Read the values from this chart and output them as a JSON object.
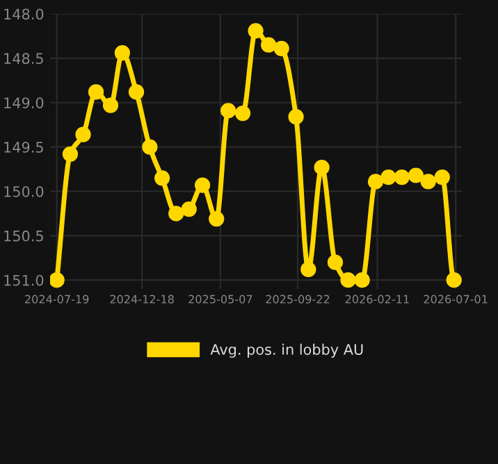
{
  "chart_data": {
    "type": "line",
    "x": [
      "2024-07-19",
      "2024-08-12",
      "2024-09-04",
      "2024-09-27",
      "2024-10-23",
      "2024-11-13",
      "2024-12-08",
      "2025-01-01",
      "2025-01-23",
      "2025-02-17",
      "2025-03-12",
      "2025-04-05",
      "2025-04-30",
      "2025-05-21",
      "2025-06-16",
      "2025-07-09",
      "2025-08-01",
      "2025-08-24",
      "2025-09-19",
      "2025-10-11",
      "2025-11-04",
      "2025-11-28",
      "2025-12-21",
      "2026-01-15",
      "2026-02-08",
      "2026-03-03",
      "2026-03-27",
      "2026-04-21",
      "2026-05-13",
      "2026-06-07",
      "2026-06-28"
    ],
    "series": [
      {
        "name": "Avg. pos. in lobby AU",
        "color": "#ffd700",
        "values": [
          151.0,
          149.58,
          149.36,
          148.88,
          149.03,
          148.44,
          148.88,
          149.5,
          149.85,
          150.25,
          150.2,
          149.93,
          150.31,
          149.09,
          149.12,
          148.19,
          148.35,
          148.39,
          149.16,
          150.88,
          149.73,
          150.8,
          151.0,
          151.0,
          149.89,
          149.84,
          149.84,
          149.82,
          149.89,
          149.84,
          151.0
        ]
      }
    ],
    "xlim": [
      "2024-07-07",
      "2026-07-12"
    ],
    "xticks": [
      "2024-07-19",
      "2024-12-18",
      "2025-05-07",
      "2025-09-22",
      "2026-02-11",
      "2026-07-01"
    ],
    "ylim": [
      151.1,
      148.0
    ],
    "yticks": [
      {
        "value": 148.0,
        "label": "148.0"
      },
      {
        "value": 148.5,
        "label": "148.5"
      },
      {
        "value": 149.0,
        "label": "149.0"
      },
      {
        "value": 149.5,
        "label": "149.5"
      },
      {
        "value": 150.0,
        "label": "150.0"
      },
      {
        "value": 150.5,
        "label": "150.5"
      },
      {
        "value": 151.0,
        "label": "151.0"
      }
    ],
    "grid": true,
    "legend": "bottom",
    "marker": "circle",
    "line_style": "solid"
  }
}
